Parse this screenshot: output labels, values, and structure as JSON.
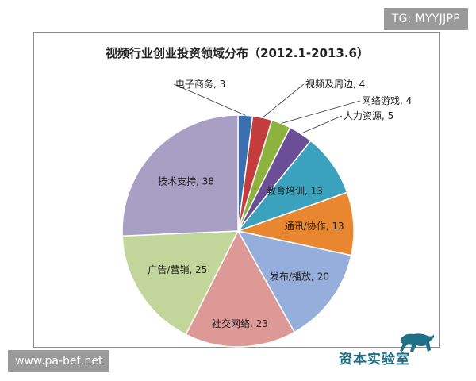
{
  "watermark_top": "TG: MYYJJPP",
  "watermark_bottom": "www.pa-bet.net",
  "brand_name": "资本实验室",
  "chart_data": {
    "type": "pie",
    "title": "视频行业创业投资领域分布（2012.1-2013.6）",
    "slices": [
      {
        "label": "电子商务",
        "value": 3,
        "color": "#3a6fb0"
      },
      {
        "label": "视频及周边",
        "value": 4,
        "color": "#c43c3c"
      },
      {
        "label": "网络游戏",
        "value": 4,
        "color": "#8db33e"
      },
      {
        "label": "人力资源",
        "value": 5,
        "color": "#6b4f96"
      },
      {
        "label": "教育培训",
        "value": 13,
        "color": "#3aa2bc"
      },
      {
        "label": "通讯/协作",
        "value": 13,
        "color": "#e8872f"
      },
      {
        "label": "发布/播放",
        "value": 20,
        "color": "#95aedb"
      },
      {
        "label": "社交网络",
        "value": 23,
        "color": "#dc9996"
      },
      {
        "label": "广告/营销",
        "value": 25,
        "color": "#c2d69b"
      },
      {
        "label": "技术支持",
        "value": 38,
        "color": "#a79fc4"
      }
    ]
  }
}
